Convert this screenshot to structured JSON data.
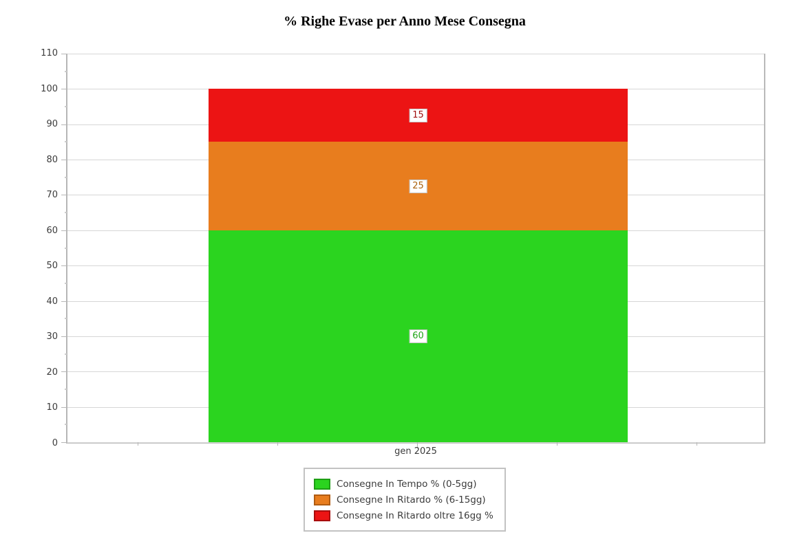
{
  "page": {
    "background": "#ffffff"
  },
  "chart_data": {
    "type": "bar",
    "stacked": true,
    "title": "% Righe Evase per Anno Mese Consegna",
    "categories": [
      "gen 2025"
    ],
    "series": [
      {
        "name": "Consegne In Tempo % (0-5gg)",
        "values": [
          60
        ],
        "color": "#2bd41f",
        "border_color": "#1e9e15",
        "label_color": "#1fa316"
      },
      {
        "name": "Consegne In Ritardo % (6-15gg)",
        "values": [
          25
        ],
        "color": "#e87d1e",
        "border_color": "#b05c12",
        "label_color": "#aa620f"
      },
      {
        "name": "Consegne In Ritardo oltre 16gg %",
        "values": [
          15
        ],
        "color": "#ec1414",
        "border_color": "#a80d0d",
        "label_color": "#a01010"
      }
    ],
    "ylim": [
      0,
      110
    ],
    "yticks": [
      0,
      10,
      20,
      30,
      40,
      50,
      60,
      70,
      80,
      90,
      100,
      110
    ],
    "minor_ytick_interval": 5,
    "xlabel": "",
    "ylabel": "",
    "grid": "horizontal",
    "legend_position": "bottom",
    "data_labels": true
  },
  "colors": {
    "axis_text": "#3b3b3b",
    "gridline": "#d6d6d6",
    "axis_line": "#b6b6b6",
    "label_box_border": "#c2c2c2",
    "legend_border": "#c2c2c2",
    "title_text": "#000000"
  }
}
